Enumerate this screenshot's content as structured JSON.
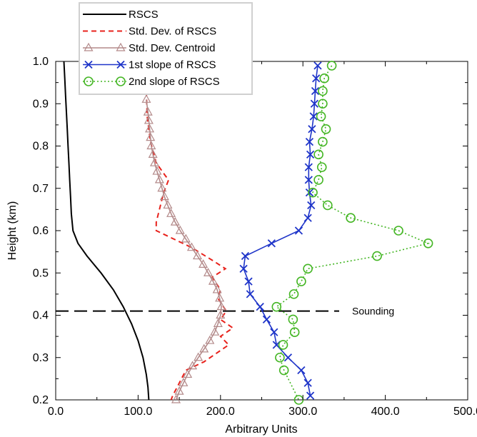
{
  "chart_data": {
    "type": "line",
    "xlabel": "Arbitrary Units",
    "ylabel": "Height (km)",
    "xlim": [
      0,
      500
    ],
    "ylim": [
      0.2,
      1.0
    ],
    "x_ticks": [
      "0.0",
      "100.0",
      "200.0",
      "300.0",
      "400.0",
      "500.0"
    ],
    "y_ticks": [
      "0.2",
      "0.3",
      "0.4",
      "0.5",
      "0.6",
      "0.7",
      "0.8",
      "0.9",
      "1.0"
    ],
    "grid": false,
    "legend_position": "top-left",
    "series": [
      {
        "name": "RSCS",
        "color": "#000000",
        "line_style": "solid",
        "marker": "none",
        "points": [
          [
            10,
            1.0
          ],
          [
            11,
            0.96
          ],
          [
            12,
            0.92
          ],
          [
            13,
            0.88
          ],
          [
            14,
            0.84
          ],
          [
            15,
            0.8
          ],
          [
            16,
            0.76
          ],
          [
            17,
            0.72
          ],
          [
            18,
            0.68
          ],
          [
            19,
            0.64
          ],
          [
            21,
            0.6
          ],
          [
            27,
            0.57
          ],
          [
            38,
            0.54
          ],
          [
            55,
            0.5
          ],
          [
            70,
            0.46
          ],
          [
            82,
            0.42
          ],
          [
            92,
            0.38
          ],
          [
            100,
            0.34
          ],
          [
            106,
            0.3
          ],
          [
            110,
            0.26
          ],
          [
            112,
            0.23
          ],
          [
            113,
            0.2
          ]
        ]
      },
      {
        "name": "Std. Dev. of RSCS",
        "color": "#e8221c",
        "line_style": "dashed",
        "marker": "none",
        "points": [
          [
            110,
            0.93
          ],
          [
            111,
            0.87
          ],
          [
            115,
            0.81
          ],
          [
            122,
            0.76
          ],
          [
            133,
            0.73
          ],
          [
            137,
            0.72
          ],
          [
            131,
            0.69
          ],
          [
            122,
            0.62
          ],
          [
            122,
            0.6
          ],
          [
            165,
            0.56
          ],
          [
            190,
            0.53
          ],
          [
            206,
            0.51
          ],
          [
            190,
            0.49
          ],
          [
            200,
            0.46
          ],
          [
            197,
            0.44
          ],
          [
            207,
            0.41
          ],
          [
            200,
            0.39
          ],
          [
            215,
            0.37
          ],
          [
            200,
            0.35
          ],
          [
            210,
            0.33
          ],
          [
            195,
            0.31
          ],
          [
            180,
            0.29
          ],
          [
            158,
            0.27
          ],
          [
            150,
            0.24
          ],
          [
            142,
            0.21
          ],
          [
            140,
            0.2
          ]
        ]
      },
      {
        "name": "Std. Dev. Centroid",
        "color": "#b38a8a",
        "line_style": "solid",
        "marker": "triangle",
        "points": [
          [
            110,
            0.91
          ],
          [
            112,
            0.88
          ],
          [
            113,
            0.86
          ],
          [
            114,
            0.84
          ],
          [
            115,
            0.82
          ],
          [
            116,
            0.8
          ],
          [
            118,
            0.78
          ],
          [
            120,
            0.76
          ],
          [
            123,
            0.74
          ],
          [
            126,
            0.72
          ],
          [
            129,
            0.7
          ],
          [
            132,
            0.68
          ],
          [
            136,
            0.66
          ],
          [
            140,
            0.64
          ],
          [
            145,
            0.62
          ],
          [
            151,
            0.6
          ],
          [
            158,
            0.58
          ],
          [
            165,
            0.56
          ],
          [
            172,
            0.54
          ],
          [
            179,
            0.52
          ],
          [
            185,
            0.5
          ],
          [
            191,
            0.48
          ],
          [
            196,
            0.46
          ],
          [
            199,
            0.44
          ],
          [
            201,
            0.42
          ],
          [
            200,
            0.4
          ],
          [
            197,
            0.38
          ],
          [
            193,
            0.36
          ],
          [
            187,
            0.34
          ],
          [
            180,
            0.32
          ],
          [
            173,
            0.3
          ],
          [
            166,
            0.28
          ],
          [
            160,
            0.26
          ],
          [
            155,
            0.24
          ],
          [
            150,
            0.22
          ],
          [
            146,
            0.2
          ]
        ]
      },
      {
        "name": "1st slope of RSCS",
        "color": "#1f35c9",
        "line_style": "solid",
        "marker": "x",
        "points": [
          [
            318,
            0.99
          ],
          [
            316,
            0.96
          ],
          [
            315,
            0.93
          ],
          [
            314,
            0.9
          ],
          [
            313,
            0.87
          ],
          [
            311,
            0.84
          ],
          [
            308,
            0.81
          ],
          [
            309,
            0.78
          ],
          [
            307,
            0.75
          ],
          [
            307,
            0.72
          ],
          [
            308,
            0.69
          ],
          [
            310,
            0.66
          ],
          [
            306,
            0.63
          ],
          [
            295,
            0.6
          ],
          [
            262,
            0.57
          ],
          [
            230,
            0.54
          ],
          [
            228,
            0.51
          ],
          [
            234,
            0.48
          ],
          [
            236,
            0.45
          ],
          [
            248,
            0.42
          ],
          [
            256,
            0.39
          ],
          [
            265,
            0.36
          ],
          [
            268,
            0.33
          ],
          [
            282,
            0.3
          ],
          [
            298,
            0.27
          ],
          [
            306,
            0.24
          ],
          [
            309,
            0.21
          ]
        ]
      },
      {
        "name": "2nd slope of RSCS",
        "color": "#44b624",
        "line_style": "dotted",
        "marker": "circle",
        "points": [
          [
            335,
            0.99
          ],
          [
            326,
            0.96
          ],
          [
            324,
            0.93
          ],
          [
            324,
            0.9
          ],
          [
            322,
            0.87
          ],
          [
            328,
            0.84
          ],
          [
            324,
            0.81
          ],
          [
            319,
            0.78
          ],
          [
            323,
            0.75
          ],
          [
            319,
            0.72
          ],
          [
            312,
            0.69
          ],
          [
            330,
            0.66
          ],
          [
            358,
            0.63
          ],
          [
            416,
            0.6
          ],
          [
            452,
            0.57
          ],
          [
            390,
            0.54
          ],
          [
            306,
            0.51
          ],
          [
            298,
            0.48
          ],
          [
            289,
            0.45
          ],
          [
            268,
            0.42
          ],
          [
            288,
            0.39
          ],
          [
            290,
            0.36
          ],
          [
            276,
            0.33
          ],
          [
            272,
            0.3
          ],
          [
            277,
            0.27
          ],
          [
            295,
            0.2
          ]
        ]
      }
    ],
    "annotations": [
      {
        "text": "Sounding",
        "y": 0.41
      }
    ]
  }
}
